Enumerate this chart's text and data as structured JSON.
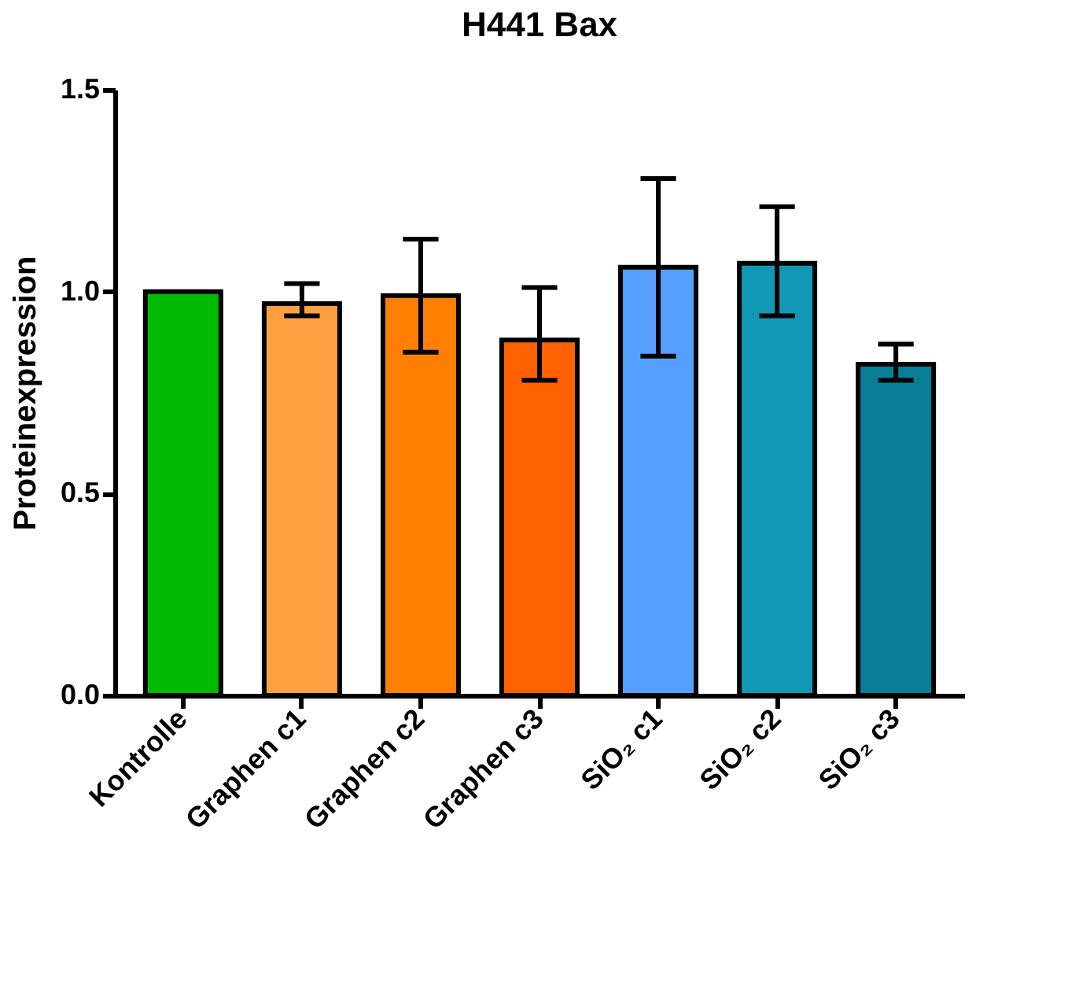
{
  "chart_data": {
    "type": "bar",
    "title": "H441 Bax",
    "ylabel": "Proteinexpression",
    "categories": [
      "Kontrolle",
      "Graphen c1",
      "Graphen c2",
      "Graphen c3",
      "SiO₂ c1",
      "SiO₂ c2",
      "SiO₂ c3"
    ],
    "values": [
      1.0,
      0.97,
      0.99,
      0.88,
      1.06,
      1.07,
      0.82
    ],
    "colors": [
      "#00bb00",
      "#ffa040",
      "#ff8000",
      "#ff6000",
      "#55a0ff",
      "#1098b4",
      "#087e96"
    ],
    "errors": [
      null,
      [
        0.94,
        1.02
      ],
      [
        0.85,
        1.13
      ],
      [
        0.78,
        1.01
      ],
      [
        0.84,
        1.28
      ],
      [
        0.94,
        1.21
      ],
      [
        0.78,
        0.87
      ]
    ],
    "ylim": [
      0,
      1.5
    ],
    "yticks": [
      {
        "value": 0,
        "label": "0.0"
      },
      0.5,
      {
        "value": 1,
        "label": "1.0"
      },
      1.5
    ],
    "grid": false,
    "legend": false
  }
}
